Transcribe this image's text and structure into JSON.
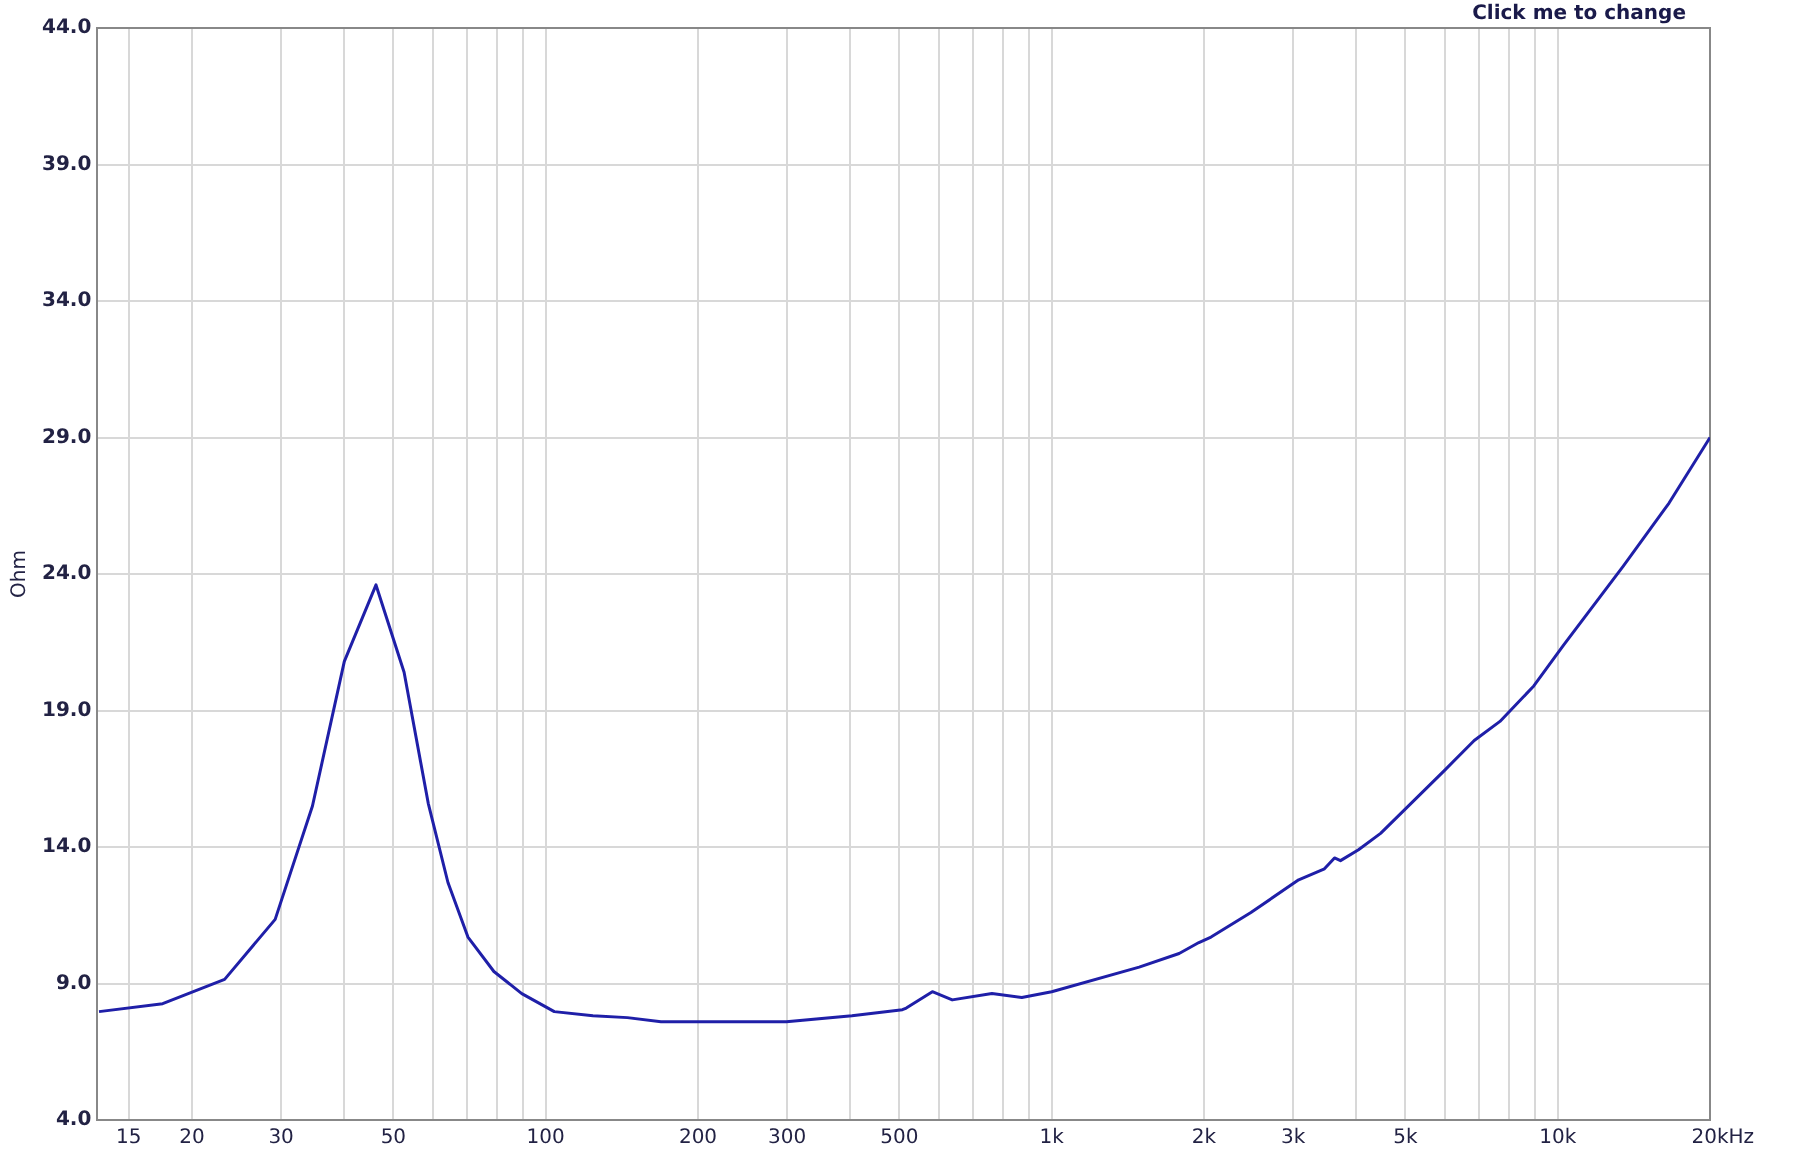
{
  "chart_data": {
    "type": "line",
    "ylabel": "Ohm",
    "annotations": [
      "Click me to change"
    ],
    "log": "x",
    "grid": true,
    "legend": false,
    "marker": "none",
    "line_style": "solid",
    "xlim": [
      13,
      20000
    ],
    "ylim": [
      4,
      44
    ],
    "xticks": [
      {
        "value": 15,
        "label": "15"
      },
      {
        "value": 20,
        "label": "20"
      },
      {
        "value": 30,
        "label": "30"
      },
      {
        "value": 40,
        "label": null
      },
      {
        "value": 50,
        "label": "50"
      },
      {
        "value": 60,
        "label": null
      },
      {
        "value": 70,
        "label": null
      },
      {
        "value": 80,
        "label": null
      },
      {
        "value": 90,
        "label": null
      },
      {
        "value": 100,
        "label": "100"
      },
      {
        "value": 200,
        "label": "200"
      },
      {
        "value": 300,
        "label": "300"
      },
      {
        "value": 400,
        "label": null
      },
      {
        "value": 500,
        "label": "500"
      },
      {
        "value": 600,
        "label": null
      },
      {
        "value": 700,
        "label": null
      },
      {
        "value": 800,
        "label": null
      },
      {
        "value": 900,
        "label": null
      },
      {
        "value": 1000,
        "label": "1k"
      },
      {
        "value": 2000,
        "label": "2k"
      },
      {
        "value": 3000,
        "label": "3k"
      },
      {
        "value": 4000,
        "label": null
      },
      {
        "value": 5000,
        "label": "5k"
      },
      {
        "value": 6000,
        "label": null
      },
      {
        "value": 7000,
        "label": null
      },
      {
        "value": 8000,
        "label": null
      },
      {
        "value": 9000,
        "label": null
      },
      {
        "value": 10000,
        "label": "10k"
      },
      {
        "value": 20000,
        "label": "20k"
      }
    ],
    "xlabel": "Hz",
    "yticks": [
      {
        "value": 4,
        "label": "4.0"
      },
      {
        "value": 9,
        "label": "9.0"
      },
      {
        "value": 14,
        "label": "14.0"
      },
      {
        "value": 19,
        "label": "19.0"
      },
      {
        "value": 24,
        "label": "24.0"
      },
      {
        "value": 29,
        "label": "29.0"
      },
      {
        "value": 34,
        "label": "34.0"
      },
      {
        "value": 39,
        "label": "39.0"
      },
      {
        "value": 44,
        "label": "44.0"
      }
    ],
    "series": [
      {
        "color": "#1f1fa8",
        "x": [
          13.1,
          17.5,
          23.2,
          29.2,
          34.6,
          40,
          46.2,
          52.5,
          58.6,
          64.1,
          70.2,
          79,
          89.7,
          104,
          124,
          145,
          169,
          199,
          299,
          403,
          507,
          516,
          581,
          636,
          762,
          873,
          1000,
          1489,
          1786,
          1954,
          2065,
          2476,
          3077,
          3460,
          3622,
          3722,
          4040,
          4467,
          5970,
          6840,
          7690,
          8970,
          10280,
          13490,
          16600,
          20000
        ],
        "values": [
          7.97,
          8.26,
          9.15,
          11.35,
          15.5,
          20.8,
          23.6,
          20.4,
          15.6,
          12.7,
          10.7,
          9.44,
          8.63,
          7.97,
          7.82,
          7.75,
          7.6,
          7.6,
          7.6,
          7.82,
          8.04,
          8.1,
          8.7,
          8.4,
          8.63,
          8.49,
          8.7,
          9.6,
          10.1,
          10.5,
          10.7,
          11.6,
          12.8,
          13.2,
          13.6,
          13.5,
          13.9,
          14.5,
          16.8,
          17.9,
          18.6,
          19.9,
          21.4,
          24.3,
          26.6,
          29.0
        ]
      }
    ]
  }
}
